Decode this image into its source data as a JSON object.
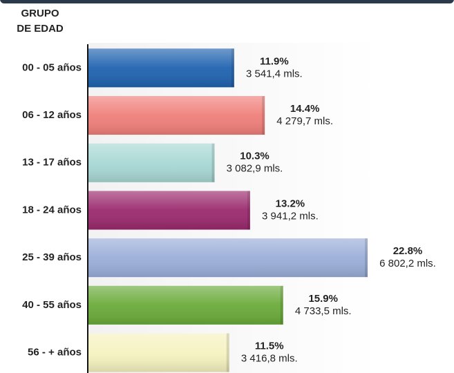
{
  "chart_data": {
    "type": "bar",
    "orientation": "horizontal",
    "y_label_lines": [
      "GRUPO",
      "DE EDAD"
    ],
    "categories": [
      "00 - 05 años",
      "06 - 12 años",
      "13 - 17 años",
      "18 - 24 años",
      "25 - 39 años",
      "40 - 55 años",
      "56 - + años"
    ],
    "values": [
      11.9,
      14.4,
      10.3,
      13.2,
      22.8,
      15.9,
      11.5
    ],
    "value_labels": [
      "11.9%",
      "14.4%",
      "10.3%",
      "13.2%",
      "22.8%",
      "15.9%",
      "11.5%"
    ],
    "counts": [
      3541.4,
      4279.7,
      3082.9,
      3941.2,
      6802.2,
      4733.5,
      3416.8
    ],
    "count_labels": [
      "3 541,4 mls.",
      "4 279,7 mls.",
      "3 082,9 mls.",
      "3 941,2 mls.",
      "6 802,2 mls.",
      "4 733,5 mls.",
      "3 416,8 mls."
    ],
    "colors": [
      "#2063b0",
      "#f07f7a",
      "#a8d8d4",
      "#9b2a6e",
      "#9aaed8",
      "#6aab3a",
      "#f5f2c0"
    ]
  }
}
